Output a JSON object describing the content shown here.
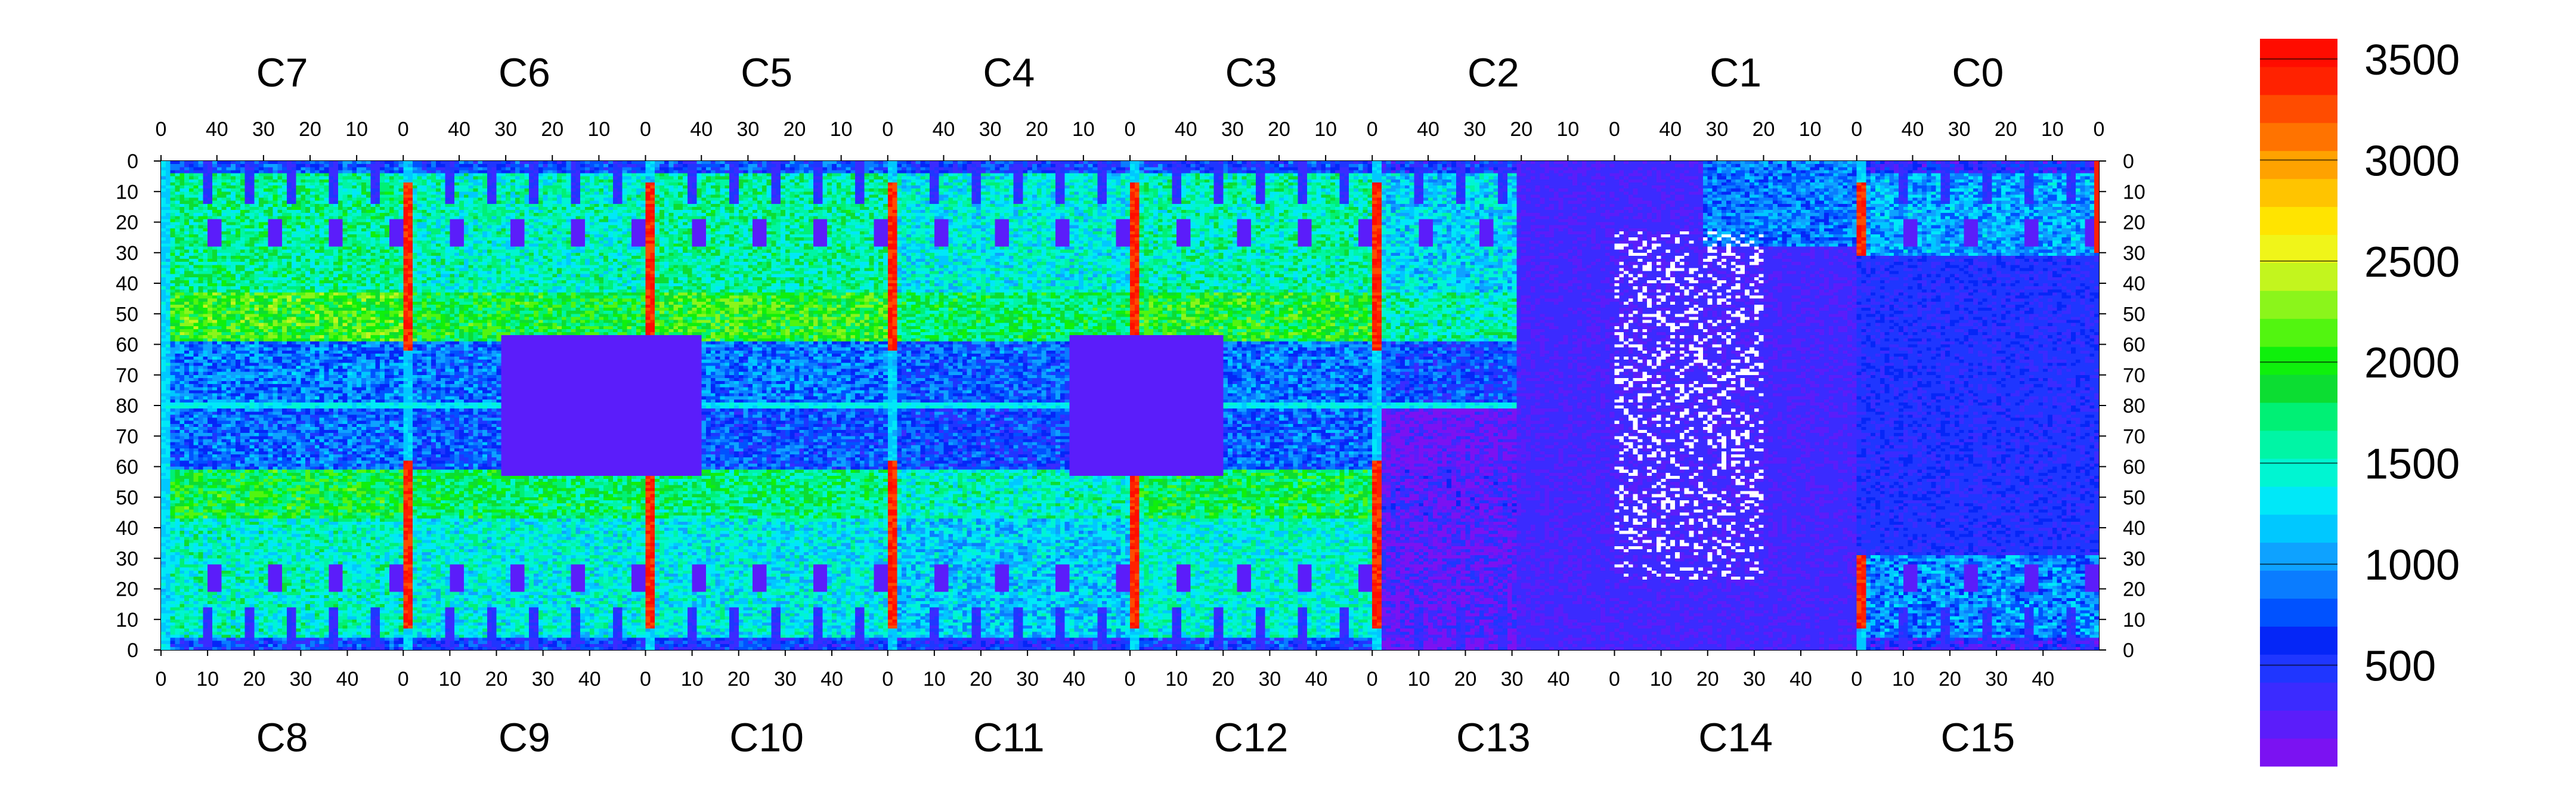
{
  "chart_data": {
    "type": "heatmap",
    "title": "",
    "xlabel": "",
    "ylabel": "",
    "top_chip_labels": [
      "C7",
      "C6",
      "C5",
      "C4",
      "C3",
      "C2",
      "C1",
      "C0"
    ],
    "bottom_chip_labels": [
      "C8",
      "C9",
      "C10",
      "C11",
      "C12",
      "C13",
      "C14",
      "C15"
    ],
    "top_tick_labels": [
      "40",
      "30",
      "20",
      "10",
      "0"
    ],
    "bottom_tick_labels": [
      "0",
      "10",
      "20",
      "30",
      "40"
    ],
    "end_tick_label": "0",
    "left_tick_labels": [
      "0",
      "10",
      "20",
      "30",
      "40",
      "50",
      "60",
      "70",
      "80",
      "70",
      "60",
      "50",
      "40",
      "30",
      "20",
      "10",
      "0"
    ],
    "right_tick_labels": [
      "0",
      "10",
      "20",
      "30",
      "40",
      "50",
      "60",
      "70",
      "80",
      "70",
      "60",
      "50",
      "40",
      "30",
      "20",
      "10",
      "0"
    ],
    "chips": 8,
    "columns_per_chip": 52,
    "rows_per_half": 80,
    "zlim": [
      0,
      3600
    ],
    "colorbar_tick_labels": [
      "3500",
      "3000",
      "2500",
      "2000",
      "1500",
      "1000",
      "500"
    ],
    "colorbar_tick_values": [
      3500,
      3000,
      2500,
      2000,
      1500,
      1000,
      500
    ],
    "colorbar_bands": [
      "#7b12f2",
      "#5b1dfa",
      "#3b2bff",
      "#1f36ff",
      "#0526f7",
      "#0052ff",
      "#0a7cff",
      "#0ea2ff",
      "#00c8ff",
      "#00e8f8",
      "#00f5d2",
      "#00f5a5",
      "#00f075",
      "#0cdd32",
      "#0ff00c",
      "#52f510",
      "#8bf51b",
      "#c3f51e",
      "#f0f519",
      "#ffe400",
      "#ffc400",
      "#ffa200",
      "#ff7300",
      "#ff4c00",
      "#ff2200",
      "#ff0c00"
    ],
    "chip_mean_values_top": [
      1650,
      1500,
      1600,
      1400,
      1550,
      1250,
      300,
      1050
    ],
    "chip_mean_values_bottom": [
      1500,
      1400,
      1350,
      1200,
      1450,
      200,
      250,
      950
    ],
    "hot_column_value": 3400,
    "dead_region_value": 250,
    "masked_pixel_color": "#ffffff"
  }
}
